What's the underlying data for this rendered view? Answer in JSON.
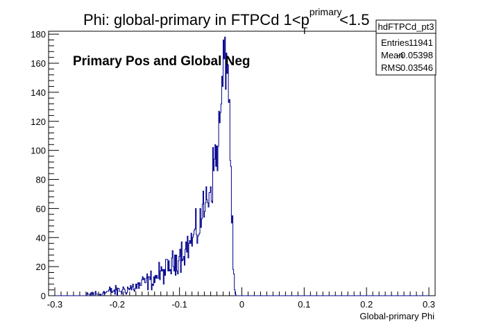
{
  "chart_data": {
    "type": "histogram",
    "title": {
      "prefix": "Phi: global-primary in FTPCd 1<p",
      "superscript": "primary",
      "subscript": "T",
      "suffix": "<1.5"
    },
    "xlabel": "Global-primary Phi",
    "ylabel": "",
    "xlim": [
      -0.31,
      0.31
    ],
    "ylim": [
      0,
      182
    ],
    "x_ticks": [
      -0.3,
      -0.2,
      -0.1,
      0,
      0.1,
      0.2,
      0.3
    ],
    "x_tick_labels": [
      "-0.3",
      "-0.2",
      "-0.1",
      "0",
      "0.1",
      "0.2",
      "0.3"
    ],
    "y_ticks": [
      0,
      20,
      40,
      60,
      80,
      100,
      120,
      140,
      160,
      180
    ],
    "y_tick_labels": [
      "0",
      "20",
      "40",
      "60",
      "80",
      "100",
      "120",
      "140",
      "160",
      "180"
    ],
    "annotation": "Primary Pos and Global Neg",
    "line_color": "#00008b",
    "stats": {
      "name": "hdFTPCd_pt3",
      "rows": [
        {
          "label": "Entries",
          "value": "11941"
        },
        {
          "label": "Mean",
          "value": "-0.05398"
        },
        {
          "label": "RMS",
          "value": "0.03546"
        }
      ]
    },
    "series": [
      {
        "x": [
          -0.25,
          -0.24,
          -0.23,
          -0.22,
          -0.21,
          -0.2,
          -0.19,
          -0.18,
          -0.17,
          -0.16,
          -0.15,
          -0.14,
          -0.13,
          -0.12,
          -0.11,
          -0.1,
          -0.09,
          -0.08,
          -0.07,
          -0.065,
          -0.06,
          -0.055,
          -0.05,
          -0.045,
          -0.04,
          -0.035,
          -0.032,
          -0.03,
          -0.028,
          -0.026,
          -0.024,
          -0.022,
          -0.02,
          -0.018,
          -0.016,
          -0.014,
          -0.012,
          -0.01,
          -0.008
        ],
        "y": [
          0,
          1,
          1,
          2,
          3,
          3,
          4,
          5,
          6,
          8,
          10,
          12,
          15,
          18,
          22,
          28,
          32,
          38,
          45,
          55,
          60,
          70,
          75,
          88,
          100,
          118,
          140,
          150,
          160,
          168,
          163,
          155,
          130,
          88,
          58,
          22,
          4,
          0,
          0
        ]
      }
    ]
  }
}
